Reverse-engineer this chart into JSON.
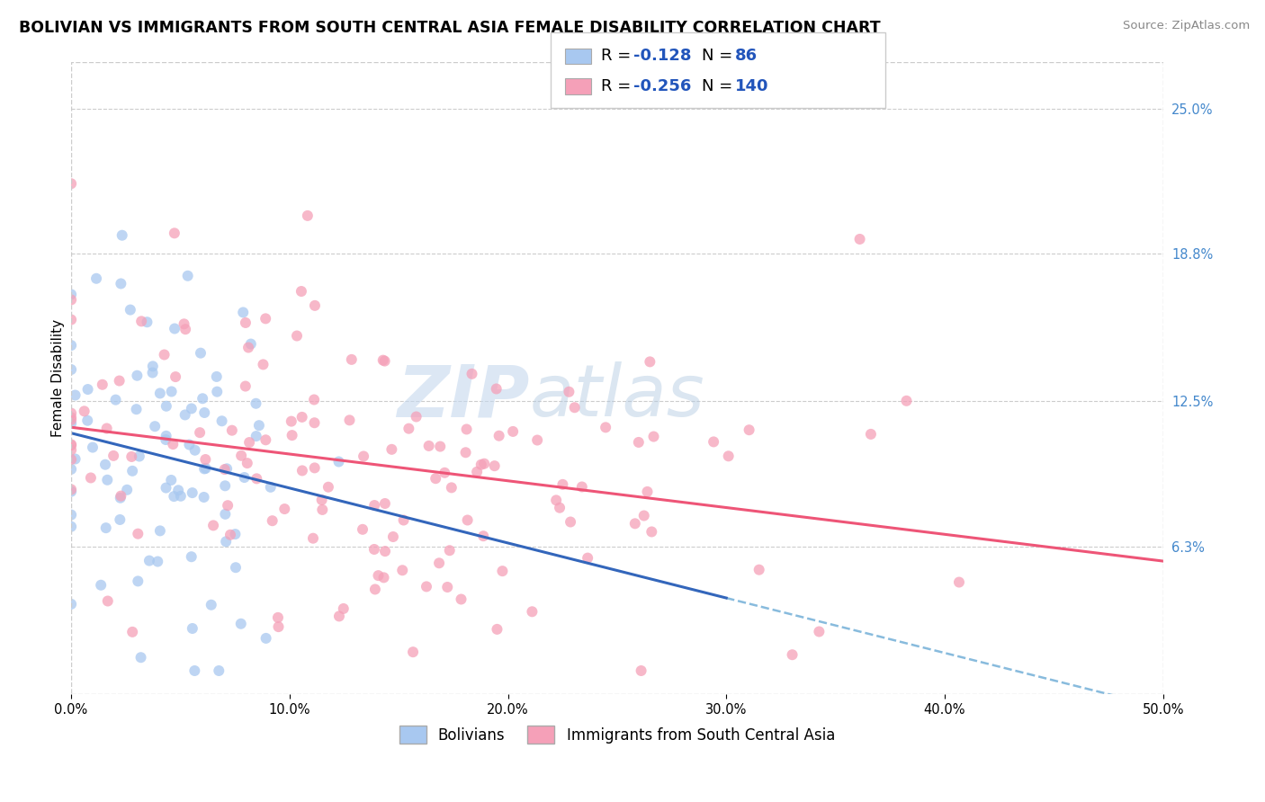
{
  "title": "BOLIVIAN VS IMMIGRANTS FROM SOUTH CENTRAL ASIA FEMALE DISABILITY CORRELATION CHART",
  "source_text": "Source: ZipAtlas.com",
  "ylabel": "Female Disability",
  "xlim": [
    0.0,
    0.5
  ],
  "ylim": [
    0.0,
    0.27
  ],
  "xtick_labels": [
    "0.0%",
    "10.0%",
    "20.0%",
    "30.0%",
    "40.0%",
    "50.0%"
  ],
  "xtick_values": [
    0.0,
    0.1,
    0.2,
    0.3,
    0.4,
    0.5
  ],
  "ytick_labels": [
    "25.0%",
    "18.8%",
    "12.5%",
    "6.3%"
  ],
  "ytick_values": [
    0.25,
    0.188,
    0.125,
    0.063
  ],
  "grid_color": "#cccccc",
  "background_color": "#ffffff",
  "bolivians_color": "#a8c8f0",
  "asia_color": "#f5a0b8",
  "bolivians_R": -0.128,
  "bolivians_N": 86,
  "asia_R": -0.256,
  "asia_N": 140,
  "trend_blue_color": "#3366bb",
  "trend_pink_color": "#ee5577",
  "trend_dash_color": "#88bbdd",
  "legend_label_1": "Bolivians",
  "legend_label_2": "Immigrants from South Central Asia",
  "watermark_zip": "ZIP",
  "watermark_atlas": "atlas",
  "title_fontsize": 12.5,
  "axis_label_fontsize": 11,
  "tick_fontsize": 10.5,
  "legend_fontsize": 12,
  "source_fontsize": 9.5
}
